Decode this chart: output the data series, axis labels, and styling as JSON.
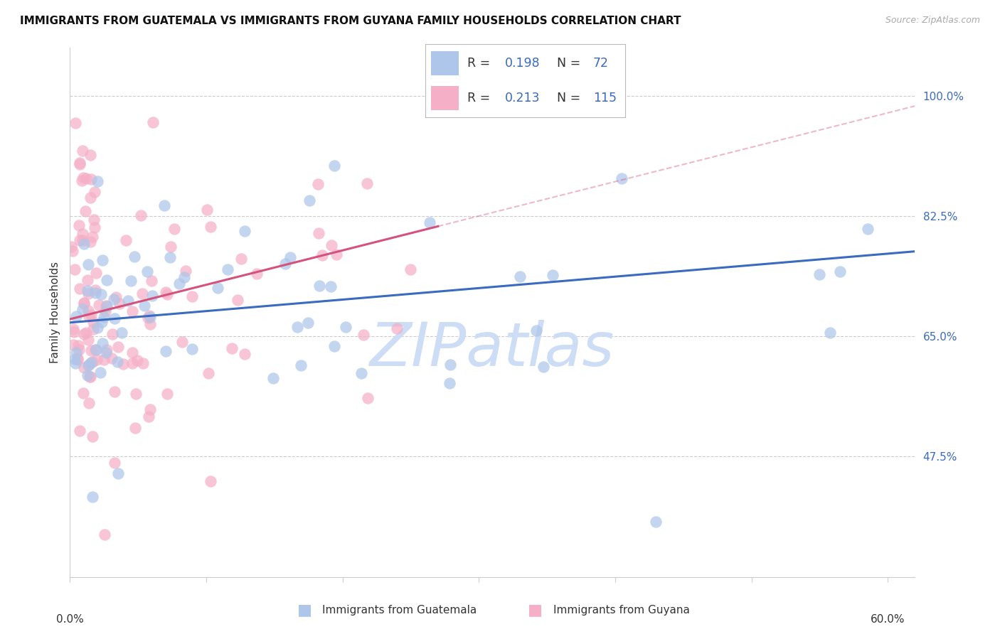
{
  "title": "IMMIGRANTS FROM GUATEMALA VS IMMIGRANTS FROM GUYANA FAMILY HOUSEHOLDS CORRELATION CHART",
  "source": "Source: ZipAtlas.com",
  "ylabel": "Family Households",
  "yticks": [
    47.5,
    65.0,
    82.5,
    100.0
  ],
  "ytick_labels": [
    "47.5%",
    "65.0%",
    "82.5%",
    "100.0%"
  ],
  "xmin": 0.0,
  "xmax": 62.0,
  "ymin": 30.0,
  "ymax": 107.0,
  "guatemala_fill_color": "#adc6ea",
  "guyana_fill_color": "#f5afc6",
  "guatemala_line_color": "#3a6bbf",
  "guyana_line_color": "#d4527c",
  "legend_text_color": "#3a6bbf",
  "label_color": "#333333",
  "grid_color": "#cccccc",
  "watermark_text": "ZIPatlas",
  "watermark_color": "#ccddf5",
  "title_fontsize": 11,
  "source_fontsize": 9,
  "tick_fontsize": 11,
  "scatter_size": 140,
  "scatter_alpha": 0.72
}
